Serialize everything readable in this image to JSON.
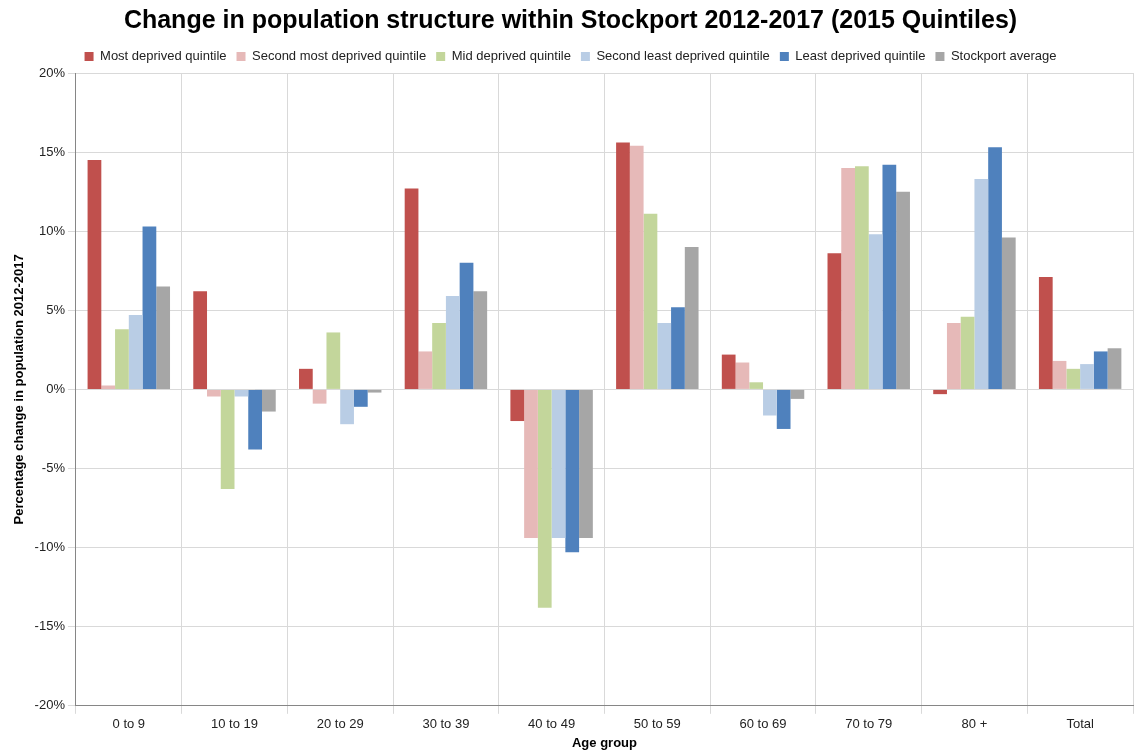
{
  "chart_data": {
    "type": "bar",
    "title": "Change in population structure within Stockport 2012-2017 (2015 Quintiles)",
    "xlabel": "Age group",
    "ylabel": "Percentage change in population 2012-2017",
    "categories": [
      "0 to 9",
      "10 to 19",
      "20 to 29",
      "30 to 39",
      "40 to 49",
      "50 to 59",
      "60 to 69",
      "70 to 79",
      "80 +",
      "Total"
    ],
    "series": [
      {
        "name": "Most deprived quintile",
        "color": "#c0504d",
        "values": [
          14.5,
          6.2,
          1.3,
          12.7,
          -2.0,
          15.6,
          2.2,
          8.6,
          -0.3,
          7.1
        ]
      },
      {
        "name": "Second most deprived quintile",
        "color": "#e6b9b8",
        "values": [
          0.25,
          -0.45,
          -0.9,
          2.4,
          -9.4,
          15.4,
          1.7,
          14.0,
          4.2,
          1.8
        ]
      },
      {
        "name": "Mid deprived quintile",
        "color": "#c3d69b",
        "values": [
          3.8,
          -6.3,
          3.6,
          4.2,
          -13.8,
          11.1,
          0.45,
          14.1,
          4.6,
          1.3
        ]
      },
      {
        "name": "Second least deprived quintile",
        "color": "#b9cde5",
        "values": [
          4.7,
          -0.45,
          -2.2,
          5.9,
          -9.4,
          4.2,
          -1.65,
          9.8,
          13.3,
          1.6
        ]
      },
      {
        "name": "Least deprived quintile",
        "color": "#4f81bd",
        "values": [
          10.3,
          -3.8,
          -1.1,
          8.0,
          -10.3,
          5.2,
          -2.5,
          14.2,
          15.3,
          2.4
        ]
      },
      {
        "name": "Stockport average",
        "color": "#a6a6a6",
        "values": [
          6.5,
          -1.4,
          -0.2,
          6.2,
          -9.4,
          9.0,
          -0.6,
          12.5,
          9.6,
          2.6
        ]
      }
    ],
    "ylim": [
      -20,
      20
    ],
    "yticks": [
      {
        "value": -20,
        "label": "-20%"
      },
      {
        "value": -15,
        "label": "-15%"
      },
      {
        "value": -10,
        "label": "-10%"
      },
      {
        "value": -5,
        "label": "-5%"
      },
      {
        "value": 0,
        "label": "0%"
      },
      {
        "value": 5,
        "label": "5%"
      },
      {
        "value": 10,
        "label": "10%"
      },
      {
        "value": 15,
        "label": "15%"
      },
      {
        "value": 20,
        "label": "20%"
      }
    ],
    "grid": true,
    "legend": "top"
  }
}
